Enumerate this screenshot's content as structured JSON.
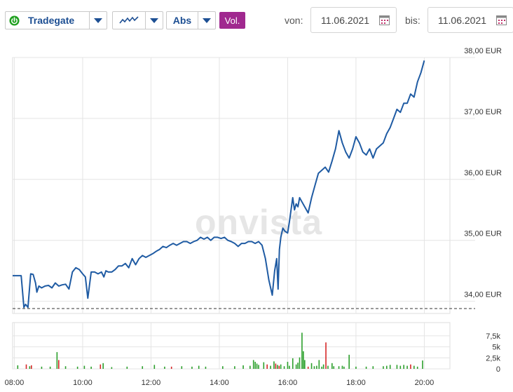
{
  "toolbar": {
    "exchange": "Tradegate",
    "scale": "Abs",
    "volume_button": "Vol.",
    "from_label": "von:",
    "from_date": "11.06.2021",
    "to_label": "bis:",
    "to_date": "11.06.2021",
    "status_color": "#20a020",
    "accent_color": "#1d4f93",
    "vol_color": "#a0288f",
    "icons": [
      "power-icon",
      "chevron-down-icon",
      "line-chart-icon",
      "calendar-icon"
    ]
  },
  "watermark": "onvista",
  "chart_data": [
    {
      "type": "line",
      "grid": true,
      "x_ticks": [
        "08:00",
        "10:00",
        "12:00",
        "14:00",
        "16:00",
        "18:00",
        "20:00"
      ],
      "x_tick_hours": [
        8,
        10,
        12,
        14,
        16,
        18,
        20
      ],
      "xlim_hours": [
        7.95,
        20.75
      ],
      "y_ticks": [
        "38,00 EUR",
        "37,00 EUR",
        "36,00 EUR",
        "35,00 EUR",
        "34,00 EUR"
      ],
      "y_tick_values": [
        38,
        37,
        36,
        35,
        34
      ],
      "ylim": [
        33.8,
        38.0
      ],
      "reference_line": 33.88,
      "line_color": "#1f5ba3",
      "series": [
        {
          "x": [
            7.95,
            8.2,
            8.28,
            8.33,
            8.4,
            8.48,
            8.55,
            8.62,
            8.66,
            8.72,
            8.8,
            8.9,
            9.0,
            9.1,
            9.2,
            9.3,
            9.4,
            9.5,
            9.6,
            9.7,
            9.8,
            9.9,
            10.0,
            10.08,
            10.15,
            10.25,
            10.35,
            10.45,
            10.55,
            10.62,
            10.68,
            10.75,
            10.85,
            10.95,
            11.05,
            11.15,
            11.25,
            11.35,
            11.45,
            11.55,
            11.65,
            11.75,
            11.85,
            11.95,
            12.05,
            12.15,
            12.25,
            12.35,
            12.45,
            12.55,
            12.65,
            12.75,
            12.85,
            12.95,
            13.05,
            13.15,
            13.25,
            13.35,
            13.45,
            13.55,
            13.65,
            13.75,
            13.85,
            13.95,
            14.05,
            14.15,
            14.25,
            14.35,
            14.45,
            14.55,
            14.65,
            14.75,
            14.85,
            14.95,
            15.05,
            15.15,
            15.25,
            15.35,
            15.45,
            15.55,
            15.62,
            15.68,
            15.72,
            15.76,
            15.8,
            15.86,
            15.92,
            16.0,
            16.05,
            16.1,
            16.15,
            16.2,
            16.25,
            16.3,
            16.35,
            16.4,
            16.5,
            16.6,
            16.7,
            16.8,
            16.9,
            17.0,
            17.1,
            17.2,
            17.3,
            17.4,
            17.5,
            17.6,
            17.7,
            17.8,
            17.9,
            18.0,
            18.1,
            18.2,
            18.3,
            18.4,
            18.5,
            18.6,
            18.7,
            18.8,
            18.9,
            19.0,
            19.1,
            19.2,
            19.3,
            19.4,
            19.5,
            19.6,
            19.7,
            19.8,
            19.9,
            20.0
          ],
          "y": [
            34.42,
            34.42,
            33.9,
            33.95,
            33.9,
            34.45,
            34.44,
            34.3,
            34.15,
            34.25,
            34.22,
            34.25,
            34.26,
            34.22,
            34.3,
            34.25,
            34.27,
            34.28,
            34.2,
            34.48,
            34.55,
            34.52,
            34.45,
            34.4,
            34.05,
            34.48,
            34.48,
            34.45,
            34.48,
            34.4,
            34.5,
            34.48,
            34.48,
            34.52,
            34.58,
            34.58,
            34.62,
            34.55,
            34.7,
            34.6,
            34.7,
            34.75,
            34.72,
            34.75,
            34.78,
            34.82,
            34.85,
            34.9,
            34.88,
            34.92,
            34.95,
            34.92,
            34.95,
            34.98,
            34.98,
            34.95,
            34.98,
            35.0,
            35.05,
            35.02,
            35.05,
            35.0,
            35.05,
            35.05,
            35.03,
            35.05,
            35.0,
            34.98,
            34.95,
            34.9,
            34.95,
            34.95,
            34.98,
            34.98,
            34.95,
            34.98,
            34.92,
            34.7,
            34.35,
            34.1,
            34.5,
            34.7,
            34.2,
            34.85,
            35.05,
            35.2,
            35.15,
            35.12,
            35.3,
            35.5,
            35.7,
            35.5,
            35.6,
            35.55,
            35.7,
            35.65,
            35.55,
            35.45,
            35.7,
            35.9,
            36.1,
            36.15,
            36.2,
            36.12,
            36.3,
            36.5,
            36.8,
            36.6,
            36.45,
            36.35,
            36.5,
            36.7,
            36.6,
            36.45,
            36.4,
            36.5,
            36.35,
            36.5,
            36.55,
            36.6,
            36.75,
            36.85,
            37.0,
            37.15,
            37.1,
            37.25,
            37.25,
            37.4,
            37.35,
            37.6,
            37.75,
            37.95
          ]
        }
      ]
    },
    {
      "type": "bar",
      "grid": true,
      "y_ticks": [
        "7,5k",
        "5k",
        "2,5k",
        "0"
      ],
      "y_tick_values": [
        7500,
        5000,
        2500,
        0
      ],
      "ylim": [
        0,
        10500
      ],
      "up_color": "#2ca02c",
      "down_color": "#d62728",
      "bars": [
        {
          "t": 8.1,
          "v": 800,
          "dir": "up"
        },
        {
          "t": 8.35,
          "v": 1000,
          "dir": "down"
        },
        {
          "t": 8.45,
          "v": 600,
          "dir": "up"
        },
        {
          "t": 8.5,
          "v": 800,
          "dir": "down"
        },
        {
          "t": 8.8,
          "v": 500,
          "dir": "up"
        },
        {
          "t": 9.05,
          "v": 500,
          "dir": "up"
        },
        {
          "t": 9.25,
          "v": 3800,
          "dir": "up"
        },
        {
          "t": 9.3,
          "v": 2000,
          "dir": "down"
        },
        {
          "t": 9.5,
          "v": 600,
          "dir": "up"
        },
        {
          "t": 9.85,
          "v": 500,
          "dir": "up"
        },
        {
          "t": 10.05,
          "v": 700,
          "dir": "up"
        },
        {
          "t": 10.25,
          "v": 500,
          "dir": "up"
        },
        {
          "t": 10.52,
          "v": 1000,
          "dir": "down"
        },
        {
          "t": 10.6,
          "v": 1300,
          "dir": "up"
        },
        {
          "t": 10.85,
          "v": 400,
          "dir": "up"
        },
        {
          "t": 11.3,
          "v": 500,
          "dir": "up"
        },
        {
          "t": 11.75,
          "v": 600,
          "dir": "up"
        },
        {
          "t": 12.1,
          "v": 900,
          "dir": "up"
        },
        {
          "t": 12.4,
          "v": 500,
          "dir": "up"
        },
        {
          "t": 12.6,
          "v": 500,
          "dir": "down"
        },
        {
          "t": 12.9,
          "v": 600,
          "dir": "up"
        },
        {
          "t": 13.2,
          "v": 500,
          "dir": "up"
        },
        {
          "t": 13.4,
          "v": 700,
          "dir": "up"
        },
        {
          "t": 13.6,
          "v": 500,
          "dir": "up"
        },
        {
          "t": 14.1,
          "v": 600,
          "dir": "up"
        },
        {
          "t": 14.45,
          "v": 600,
          "dir": "up"
        },
        {
          "t": 14.7,
          "v": 800,
          "dir": "up"
        },
        {
          "t": 14.9,
          "v": 700,
          "dir": "up"
        },
        {
          "t": 15.0,
          "v": 2000,
          "dir": "up"
        },
        {
          "t": 15.05,
          "v": 1600,
          "dir": "up"
        },
        {
          "t": 15.1,
          "v": 1200,
          "dir": "up"
        },
        {
          "t": 15.15,
          "v": 900,
          "dir": "up"
        },
        {
          "t": 15.3,
          "v": 1500,
          "dir": "up"
        },
        {
          "t": 15.4,
          "v": 1000,
          "dir": "down"
        },
        {
          "t": 15.5,
          "v": 700,
          "dir": "up"
        },
        {
          "t": 15.6,
          "v": 1700,
          "dir": "up"
        },
        {
          "t": 15.65,
          "v": 1200,
          "dir": "down"
        },
        {
          "t": 15.7,
          "v": 900,
          "dir": "up"
        },
        {
          "t": 15.75,
          "v": 700,
          "dir": "down"
        },
        {
          "t": 15.8,
          "v": 1000,
          "dir": "up"
        },
        {
          "t": 15.9,
          "v": 600,
          "dir": "up"
        },
        {
          "t": 16.0,
          "v": 1600,
          "dir": "up"
        },
        {
          "t": 16.05,
          "v": 700,
          "dir": "up"
        },
        {
          "t": 16.15,
          "v": 2400,
          "dir": "up"
        },
        {
          "t": 16.25,
          "v": 1000,
          "dir": "up"
        },
        {
          "t": 16.3,
          "v": 1400,
          "dir": "up"
        },
        {
          "t": 16.35,
          "v": 2600,
          "dir": "up"
        },
        {
          "t": 16.42,
          "v": 8200,
          "dir": "up"
        },
        {
          "t": 16.46,
          "v": 4000,
          "dir": "up"
        },
        {
          "t": 16.5,
          "v": 2000,
          "dir": "up"
        },
        {
          "t": 16.6,
          "v": 500,
          "dir": "down"
        },
        {
          "t": 16.7,
          "v": 1300,
          "dir": "up"
        },
        {
          "t": 16.78,
          "v": 600,
          "dir": "up"
        },
        {
          "t": 16.85,
          "v": 700,
          "dir": "up"
        },
        {
          "t": 16.92,
          "v": 2000,
          "dir": "up"
        },
        {
          "t": 17.0,
          "v": 500,
          "dir": "up"
        },
        {
          "t": 17.05,
          "v": 1000,
          "dir": "up"
        },
        {
          "t": 17.12,
          "v": 6000,
          "dir": "down"
        },
        {
          "t": 17.18,
          "v": 700,
          "dir": "up"
        },
        {
          "t": 17.3,
          "v": 1300,
          "dir": "up"
        },
        {
          "t": 17.35,
          "v": 600,
          "dir": "up"
        },
        {
          "t": 17.5,
          "v": 600,
          "dir": "up"
        },
        {
          "t": 17.6,
          "v": 700,
          "dir": "up"
        },
        {
          "t": 17.65,
          "v": 500,
          "dir": "up"
        },
        {
          "t": 17.8,
          "v": 3200,
          "dir": "up"
        },
        {
          "t": 18.0,
          "v": 500,
          "dir": "up"
        },
        {
          "t": 18.3,
          "v": 500,
          "dir": "up"
        },
        {
          "t": 18.5,
          "v": 600,
          "dir": "up"
        },
        {
          "t": 18.8,
          "v": 600,
          "dir": "up"
        },
        {
          "t": 18.9,
          "v": 700,
          "dir": "up"
        },
        {
          "t": 19.0,
          "v": 900,
          "dir": "up"
        },
        {
          "t": 19.2,
          "v": 900,
          "dir": "up"
        },
        {
          "t": 19.3,
          "v": 700,
          "dir": "up"
        },
        {
          "t": 19.4,
          "v": 900,
          "dir": "up"
        },
        {
          "t": 19.5,
          "v": 700,
          "dir": "up"
        },
        {
          "t": 19.6,
          "v": 1000,
          "dir": "down"
        },
        {
          "t": 19.7,
          "v": 700,
          "dir": "up"
        },
        {
          "t": 19.8,
          "v": 500,
          "dir": "up"
        },
        {
          "t": 19.95,
          "v": 1900,
          "dir": "up"
        }
      ]
    }
  ]
}
